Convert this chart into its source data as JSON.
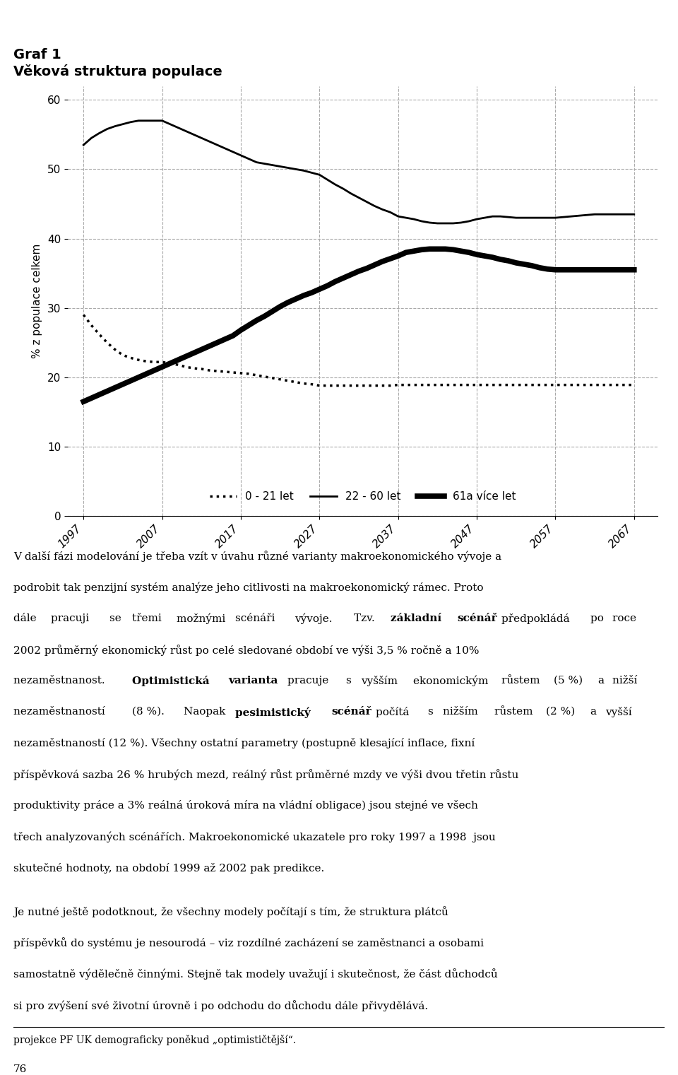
{
  "title_line1": "Graf 1",
  "title_line2": "Věková struktura populace",
  "ylabel": "% z populace celkem",
  "years": [
    1997,
    2007,
    2017,
    2027,
    2037,
    2047,
    2057,
    2067
  ],
  "xtick_labels": [
    "1997",
    "2007",
    "2017",
    "2027",
    "2037",
    "2047",
    "2057",
    "2067"
  ],
  "yticks": [
    0,
    10,
    20,
    30,
    40,
    50,
    60
  ],
  "ylim": [
    0,
    62
  ],
  "xlim": [
    1995,
    2070
  ],
  "series_0_21_x": [
    1997,
    1998,
    1999,
    2000,
    2001,
    2002,
    2003,
    2004,
    2005,
    2006,
    2007,
    2008,
    2009,
    2010,
    2011,
    2012,
    2013,
    2014,
    2015,
    2016,
    2017,
    2018,
    2019,
    2020,
    2021,
    2022,
    2023,
    2024,
    2025,
    2026,
    2027,
    2028,
    2029,
    2030,
    2031,
    2032,
    2033,
    2034,
    2035,
    2036,
    2037,
    2038,
    2039,
    2040,
    2041,
    2042,
    2043,
    2044,
    2045,
    2046,
    2047,
    2048,
    2049,
    2050,
    2051,
    2052,
    2053,
    2054,
    2055,
    2056,
    2057,
    2058,
    2059,
    2060,
    2061,
    2062,
    2063,
    2064,
    2065,
    2066,
    2067
  ],
  "series_0_21_y": [
    29,
    27.5,
    26.2,
    25.0,
    24.0,
    23.2,
    22.8,
    22.5,
    22.3,
    22.2,
    22.2,
    22.0,
    21.8,
    21.5,
    21.3,
    21.2,
    21.0,
    20.9,
    20.8,
    20.7,
    20.6,
    20.5,
    20.3,
    20.1,
    19.9,
    19.7,
    19.5,
    19.3,
    19.1,
    19.0,
    18.8,
    18.8,
    18.8,
    18.8,
    18.8,
    18.8,
    18.8,
    18.8,
    18.8,
    18.8,
    18.9,
    18.9,
    18.9,
    18.9,
    18.9,
    18.9,
    18.9,
    18.9,
    18.9,
    18.9,
    18.9,
    18.9,
    18.9,
    18.9,
    18.9,
    18.9,
    18.9,
    18.9,
    18.9,
    18.9,
    18.9,
    18.9,
    18.9,
    18.9,
    18.9,
    18.9,
    18.9,
    18.9,
    18.9,
    18.9,
    18.9
  ],
  "series_22_60_x": [
    1997,
    1998,
    1999,
    2000,
    2001,
    2002,
    2003,
    2004,
    2005,
    2006,
    2007,
    2008,
    2009,
    2010,
    2011,
    2012,
    2013,
    2014,
    2015,
    2016,
    2017,
    2018,
    2019,
    2020,
    2021,
    2022,
    2023,
    2024,
    2025,
    2026,
    2027,
    2028,
    2029,
    2030,
    2031,
    2032,
    2033,
    2034,
    2035,
    2036,
    2037,
    2038,
    2039,
    2040,
    2041,
    2042,
    2043,
    2044,
    2045,
    2046,
    2047,
    2048,
    2049,
    2050,
    2051,
    2052,
    2053,
    2054,
    2055,
    2056,
    2057,
    2058,
    2059,
    2060,
    2061,
    2062,
    2063,
    2064,
    2065,
    2066,
    2067
  ],
  "series_22_60_y": [
    53.5,
    54.5,
    55.2,
    55.8,
    56.2,
    56.5,
    56.8,
    57.0,
    57.0,
    57.0,
    57.0,
    56.5,
    56.0,
    55.5,
    55.0,
    54.5,
    54.0,
    53.5,
    53.0,
    52.5,
    52.0,
    51.5,
    51.0,
    50.8,
    50.6,
    50.4,
    50.2,
    50.0,
    49.8,
    49.5,
    49.2,
    48.5,
    47.8,
    47.2,
    46.5,
    45.9,
    45.3,
    44.7,
    44.2,
    43.8,
    43.2,
    43.0,
    42.8,
    42.5,
    42.3,
    42.2,
    42.2,
    42.2,
    42.3,
    42.5,
    42.8,
    43.0,
    43.2,
    43.2,
    43.1,
    43.0,
    43.0,
    43.0,
    43.0,
    43.0,
    43.0,
    43.1,
    43.2,
    43.3,
    43.4,
    43.5,
    43.5,
    43.5,
    43.5,
    43.5,
    43.5
  ],
  "series_61_x": [
    1997,
    1998,
    1999,
    2000,
    2001,
    2002,
    2003,
    2004,
    2005,
    2006,
    2007,
    2008,
    2009,
    2010,
    2011,
    2012,
    2013,
    2014,
    2015,
    2016,
    2017,
    2018,
    2019,
    2020,
    2021,
    2022,
    2023,
    2024,
    2025,
    2026,
    2027,
    2028,
    2029,
    2030,
    2031,
    2032,
    2033,
    2034,
    2035,
    2036,
    2037,
    2038,
    2039,
    2040,
    2041,
    2042,
    2043,
    2044,
    2045,
    2046,
    2047,
    2048,
    2049,
    2050,
    2051,
    2052,
    2053,
    2054,
    2055,
    2056,
    2057,
    2058,
    2059,
    2060,
    2061,
    2062,
    2063,
    2064,
    2065,
    2066,
    2067
  ],
  "series_61_y": [
    16.5,
    17.0,
    17.5,
    18.0,
    18.5,
    19.0,
    19.5,
    20.0,
    20.5,
    21.0,
    21.5,
    22.0,
    22.5,
    23.0,
    23.5,
    24.0,
    24.5,
    25.0,
    25.5,
    26.0,
    26.8,
    27.5,
    28.2,
    28.8,
    29.5,
    30.2,
    30.8,
    31.3,
    31.8,
    32.2,
    32.7,
    33.2,
    33.8,
    34.3,
    34.8,
    35.3,
    35.7,
    36.2,
    36.7,
    37.1,
    37.5,
    38.0,
    38.2,
    38.4,
    38.5,
    38.5,
    38.5,
    38.4,
    38.2,
    38.0,
    37.7,
    37.5,
    37.3,
    37.0,
    36.8,
    36.5,
    36.3,
    36.1,
    35.8,
    35.6,
    35.5,
    35.5,
    35.5,
    35.5,
    35.5,
    35.5,
    35.5,
    35.5,
    35.5,
    35.5,
    35.5
  ],
  "legend_labels": [
    "0 - 21 let",
    "22 - 60 let",
    "61a více let"
  ],
  "footnote": "projekce PF UK demograficky poněkud „optimističtější“.",
  "page_number": "76",
  "grid_color": "#aaaaaa"
}
